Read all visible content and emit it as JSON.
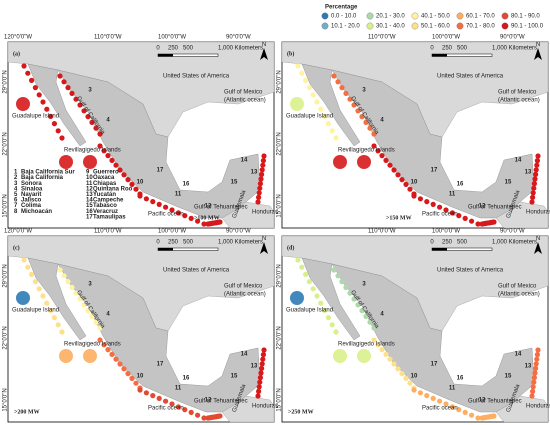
{
  "legend": {
    "title": "Percentage",
    "items": [
      {
        "label": "0.0 - 10.0",
        "color": "#2c7bb6"
      },
      {
        "label": "10.1 - 20.0",
        "color": "#6fb0c8"
      },
      {
        "label": "20.1 - 30.0",
        "color": "#abd9a9"
      },
      {
        "label": "30.1 - 40.0",
        "color": "#d9ef8b"
      },
      {
        "label": "40.1 - 50.0",
        "color": "#fff3a0"
      },
      {
        "label": "50.1 - 60.0",
        "color": "#fee08b"
      },
      {
        "label": "60.1 - 70.0",
        "color": "#fdae61"
      },
      {
        "label": "70.1 - 80.0",
        "color": "#f46d43"
      },
      {
        "label": "80.1 - 90.0",
        "color": "#e34a33"
      },
      {
        "label": "90.1 - 100.0",
        "color": "#d7191c"
      }
    ]
  },
  "axes": {
    "longitude": [
      "120°0'0\"W",
      "110°0'0\"W",
      "100°0'0\"W",
      "90°0'0\"W"
    ],
    "latitude": [
      "29°0'0\"N",
      "22°0'0\"N",
      "15°0'0\"N"
    ]
  },
  "panels": [
    {
      "label": "(a)",
      "caption": ">100 MW"
    },
    {
      "label": "(b)",
      "caption": ">150 MW"
    },
    {
      "label": "(c)",
      "caption": ">200 MW"
    },
    {
      "label": "(d)",
      "caption": ">250 MW"
    }
  ],
  "scale": {
    "ticks": [
      "0",
      "250",
      "500",
      "1,000 Kilometers"
    ],
    "north": "N"
  },
  "map_labels": {
    "usa": "United States of America",
    "gulf": "Gulf of Mexico",
    "gulf_sub": "(Atlantic ocean)",
    "pacific": "Pacific ocean",
    "guadalupe": "Guadalupe Island",
    "revilla": "Revillagigedo Islands",
    "tehuantepec": "Gulf of Tehuantepec",
    "guatemala": "Guatemala",
    "honduras": "Honduras",
    "california": "Gulf of California"
  },
  "states": [
    {
      "number": "1",
      "name": "Baja California Sur"
    },
    {
      "number": "2",
      "name": "Baja California"
    },
    {
      "number": "3",
      "name": "Sonora"
    },
    {
      "number": "4",
      "name": "Sinaloa"
    },
    {
      "number": "5",
      "name": "Nayarit"
    },
    {
      "number": "6",
      "name": "Jalisco"
    },
    {
      "number": "7",
      "name": "Colima"
    },
    {
      "number": "8",
      "name": "Michoacán"
    },
    {
      "number": "9",
      "name": "Guerrero"
    },
    {
      "number": "10",
      "name": "Oaxaca"
    },
    {
      "number": "11",
      "name": "Chiapas"
    },
    {
      "number": "12",
      "name": "Quintana Roo"
    },
    {
      "number": "13",
      "name": "Yucatán"
    },
    {
      "number": "14",
      "name": "Campeche"
    },
    {
      "number": "15",
      "name": "Tabasco"
    },
    {
      "number": "16",
      "name": "Veracruz"
    },
    {
      "number": "17",
      "name": "Tamaulipas"
    }
  ]
}
